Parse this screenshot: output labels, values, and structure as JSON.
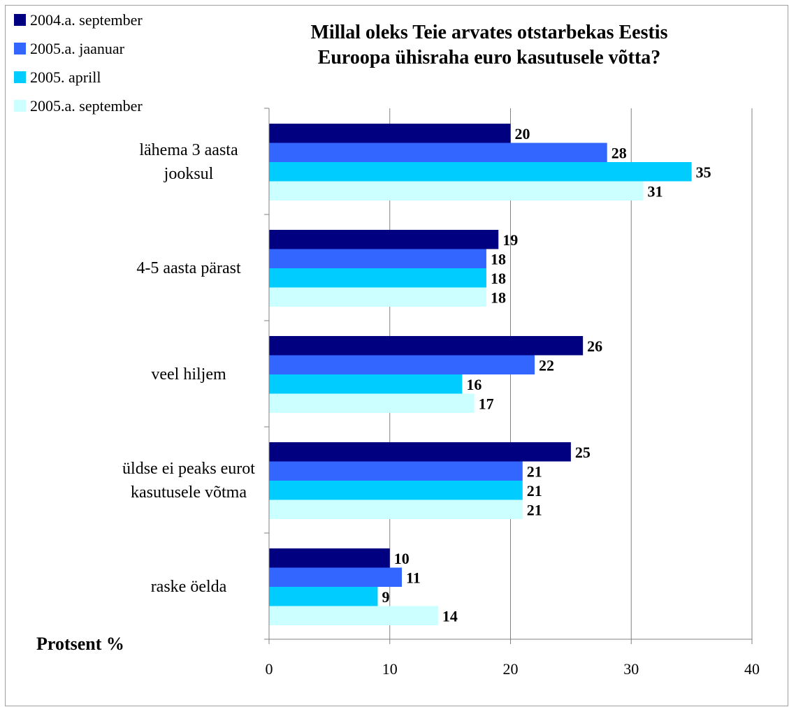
{
  "chart_data": {
    "type": "bar",
    "orientation": "horizontal",
    "title": [
      "Millal oleks Teie arvates otstarbekas Eestis",
      "Euroopa ühisraha euro kasutusele võtta?"
    ],
    "xlabel": "Protsent %",
    "xlim": [
      0,
      40
    ],
    "xticks": [
      0,
      10,
      20,
      30,
      40
    ],
    "grid": true,
    "legend_position": "top-left",
    "categories": [
      [
        "lähema 3 aasta",
        "jooksul"
      ],
      [
        "4-5 aasta pärast"
      ],
      [
        "veel hiljem"
      ],
      [
        "üldse ei peaks eurot",
        "kasutusele võtma"
      ],
      [
        "raske öelda"
      ]
    ],
    "series": [
      {
        "name": "2004.a. september",
        "color": "#000080",
        "values": [
          20,
          19,
          26,
          25,
          10
        ]
      },
      {
        "name": "2005.a. jaanuar",
        "color": "#3366ff",
        "values": [
          28,
          18,
          22,
          21,
          11
        ]
      },
      {
        "name": "2005. aprill",
        "color": "#00ccff",
        "values": [
          35,
          18,
          16,
          21,
          9
        ]
      },
      {
        "name": "2005.a. september",
        "color": "#ccffff",
        "values": [
          31,
          18,
          17,
          21,
          14
        ]
      }
    ]
  }
}
